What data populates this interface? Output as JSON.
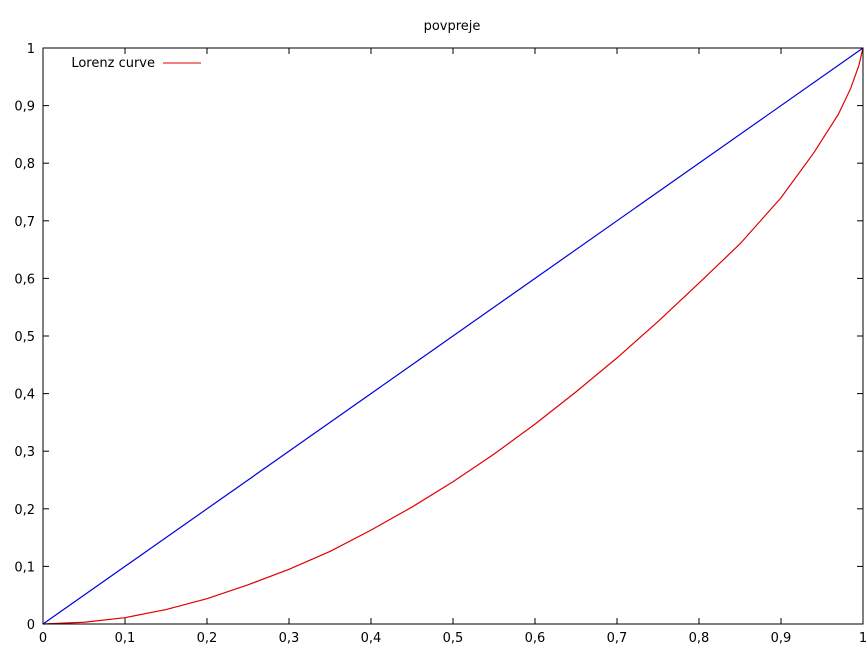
{
  "chart_data": {
    "type": "line",
    "title": "povpreje",
    "xlabel": "",
    "ylabel": "",
    "xlim": [
      0,
      1
    ],
    "ylim": [
      0,
      1
    ],
    "grid": false,
    "legend_position": "top-left",
    "x_ticks": [
      "0",
      "0,1",
      "0,2",
      "0,3",
      "0,4",
      "0,5",
      "0,6",
      "0,7",
      "0,8",
      "0,9",
      "1"
    ],
    "y_ticks": [
      "0",
      "0,1",
      "0,2",
      "0,3",
      "0,4",
      "0,5",
      "0,6",
      "0,7",
      "0,8",
      "0,9",
      "1"
    ],
    "series": [
      {
        "name": "Lorenz curve",
        "color": "#e00000",
        "points": [
          [
            0,
            0
          ],
          [
            0.05,
            0.003
          ],
          [
            0.1,
            0.011
          ],
          [
            0.15,
            0.025
          ],
          [
            0.2,
            0.044
          ],
          [
            0.25,
            0.068
          ],
          [
            0.3,
            0.095
          ],
          [
            0.35,
            0.126
          ],
          [
            0.4,
            0.163
          ],
          [
            0.45,
            0.203
          ],
          [
            0.5,
            0.247
          ],
          [
            0.55,
            0.295
          ],
          [
            0.6,
            0.347
          ],
          [
            0.65,
            0.403
          ],
          [
            0.7,
            0.462
          ],
          [
            0.75,
            0.525
          ],
          [
            0.8,
            0.592
          ],
          [
            0.85,
            0.66
          ],
          [
            0.9,
            0.74
          ],
          [
            0.94,
            0.818
          ],
          [
            0.97,
            0.885
          ],
          [
            0.985,
            0.93
          ],
          [
            0.995,
            0.97
          ],
          [
            1,
            1
          ]
        ]
      },
      {
        "color": "#0000e0",
        "points": [
          [
            0,
            0
          ],
          [
            1,
            1
          ]
        ]
      }
    ]
  }
}
